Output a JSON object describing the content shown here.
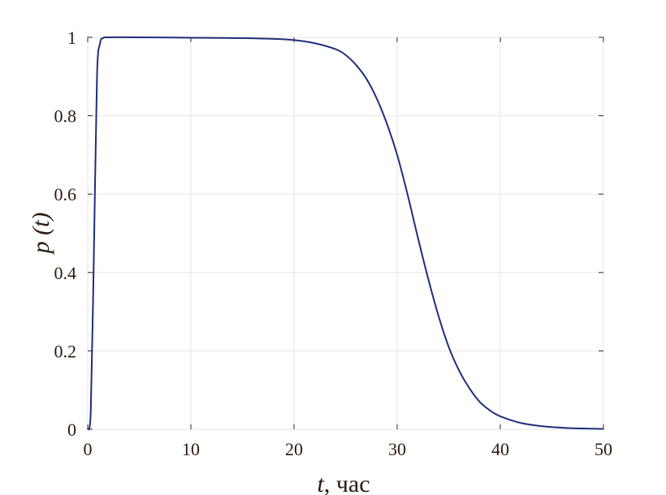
{
  "chart_data": {
    "type": "line",
    "xlabel_var": "t",
    "xlabel_unit": ", час",
    "ylabel_var": "p",
    "ylabel_arg": "(t)",
    "xlim": [
      0,
      50
    ],
    "ylim": [
      0,
      1
    ],
    "xticks": [
      "0",
      "10",
      "20",
      "30",
      "40",
      "50"
    ],
    "yticks": [
      "0",
      "0.2",
      "0.4",
      "0.6",
      "0.8",
      "1"
    ],
    "grid": true,
    "series": [
      {
        "color": "#1f2f7a",
        "x": [
          0,
          0.3,
          0.6,
          0.9,
          1.2,
          1.5,
          2,
          5,
          10,
          15,
          18,
          20,
          22,
          24,
          25,
          26,
          27,
          28,
          29,
          30,
          31,
          32,
          33,
          34,
          35,
          36,
          37,
          38,
          39,
          40,
          42,
          44,
          46,
          48,
          50
        ],
        "y": [
          0,
          0.05,
          0.45,
          0.9,
          0.985,
          0.998,
          1.0,
          1.0,
          0.999,
          0.998,
          0.996,
          0.993,
          0.985,
          0.97,
          0.955,
          0.93,
          0.895,
          0.845,
          0.78,
          0.7,
          0.6,
          0.49,
          0.385,
          0.29,
          0.21,
          0.15,
          0.105,
          0.07,
          0.048,
          0.033,
          0.016,
          0.008,
          0.004,
          0.002,
          0.001
        ]
      }
    ]
  }
}
